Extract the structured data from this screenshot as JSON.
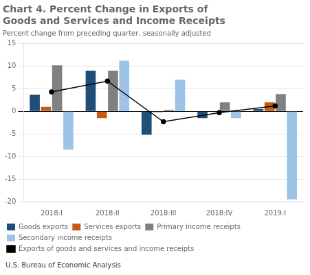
{
  "chart_data": {
    "type": "bar",
    "title": "Chart 4. Percent Change in Exports of\nGoods and Services and Income Receipts",
    "subtitle": "Percent change from preceding quarter, seasonally adjusted",
    "source": "U.S. Bureau of Economic Analysis",
    "categories": [
      "2018:I",
      "2018:II",
      "2018:III",
      "2018:IV",
      "2019:I"
    ],
    "series": [
      {
        "name": "Goods exports",
        "color": "#1f4e79",
        "values": [
          3.7,
          9.0,
          -5.2,
          -1.5,
          0.5
        ]
      },
      {
        "name": "Services exports",
        "color": "#c55a11",
        "values": [
          1.0,
          -1.5,
          -0.2,
          0.0,
          2.0
        ]
      },
      {
        "name": "Primary income receipts",
        "color": "#808080",
        "values": [
          10.2,
          9.0,
          0.3,
          2.0,
          3.8
        ]
      },
      {
        "name": "Secondary income receipts",
        "color": "#9dc3e6",
        "values": [
          -8.5,
          11.2,
          7.0,
          -1.5,
          -19.5
        ]
      },
      {
        "name": "Exports of goods and services and income receipts",
        "type": "line",
        "color": "#000000",
        "marker": "circle",
        "line_style": "solid",
        "values": [
          4.3,
          6.7,
          -2.3,
          -0.3,
          1.2
        ]
      }
    ],
    "ylim": [
      -20,
      15
    ],
    "yticks": [
      -20,
      -15,
      -10,
      -5,
      0,
      5,
      10,
      15
    ],
    "grid": true,
    "legend": "bottom"
  }
}
